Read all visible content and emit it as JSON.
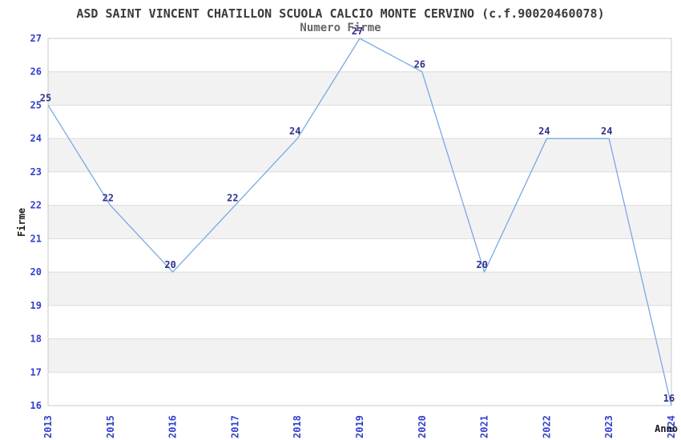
{
  "chart_data": {
    "type": "line",
    "title": "ASD SAINT VINCENT CHATILLON SCUOLA CALCIO MONTE CERVINO (c.f.90020460078)",
    "subtitle": "Numero Firme",
    "xlabel": "Anno",
    "ylabel": "Firme",
    "categories": [
      "2013",
      "2015",
      "2016",
      "2017",
      "2018",
      "2019",
      "2020",
      "2021",
      "2022",
      "2023",
      "2024"
    ],
    "values": [
      25,
      22,
      20,
      22,
      24,
      27,
      26,
      20,
      24,
      24,
      16
    ],
    "ylim": [
      16,
      27
    ],
    "ytick_step": 1,
    "grid": true,
    "legend": "none",
    "markers": "none",
    "band_pattern": "alternating horizontal bands, white between even-odd, gray between odd-even",
    "colors": {
      "line": "#79a9e3",
      "band": "#f2f2f2",
      "band_alt": "#ffffff",
      "grid": "#dcdcdc",
      "border": "#c8c8c8",
      "tick_label": "#3340cc",
      "data_label": "#31318f",
      "title": "#3a3a3c",
      "subtitle": "#66666a",
      "axis_title": "#1a1a1a",
      "background": "#ffffff"
    }
  }
}
